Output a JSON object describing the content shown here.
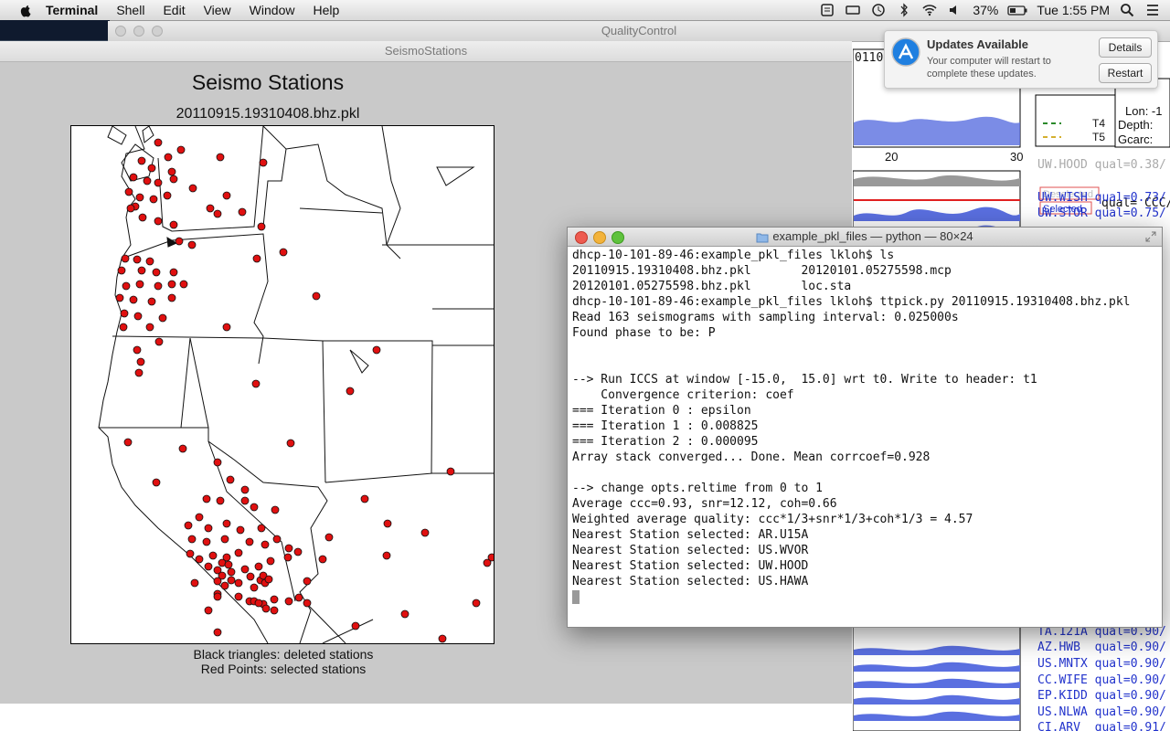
{
  "menubar": {
    "app": "Terminal",
    "items": [
      "Shell",
      "Edit",
      "View",
      "Window",
      "Help"
    ],
    "battery": "37%",
    "clock": "Tue 1:55 PM"
  },
  "qc_window": {
    "title": "QualityControl",
    "right_panel": {
      "legend": [
        "T4",
        "T5"
      ],
      "info": [
        "Lon: -1",
        "Depth:",
        "Gcarc:"
      ],
      "axis_ticks": [
        "20",
        "30"
      ],
      "event_tag": "0110",
      "deselected_label": "Deselected",
      "selected_label": "Selected",
      "qual_header": "qual= CCC/",
      "stations_top": [
        "UW.HOOD qual=0.38/",
        "UW.WISH qual=0.73/",
        "UW.STOR qual=0.75/"
      ],
      "stations_bottom": [
        "TA.121A qual=0.90/",
        "AZ.HWB  qual=0.90/",
        "US.MNTX qual=0.90/",
        "CC.WIFE qual=0.90/",
        "EP.KIDD qual=0.90/",
        "US.NLWA qual=0.90/",
        "CI.ARV  qual=0.91/"
      ]
    }
  },
  "seismo_window": {
    "title": "SeismoStations",
    "figure_title": "Seismo Stations",
    "figure_subtitle": "20110915.19310408.bhz.pkl",
    "caption_1": "Black triangles: deleted stations",
    "caption_2": "Red Points: selected stations"
  },
  "notification": {
    "title": "Updates Available",
    "message": "Your computer will restart to complete these updates.",
    "details_button": "Details",
    "restart_button": "Restart"
  },
  "terminal": {
    "title": "example_pkl_files — python — 80×24",
    "lines": [
      "dhcp-10-101-89-46:example_pkl_files lkloh$ ls",
      "20110915.19310408.bhz.pkl       20120101.05275598.mcp",
      "20120101.05275598.bhz.pkl       loc.sta",
      "dhcp-10-101-89-46:example_pkl_files lkloh$ ttpick.py 20110915.19310408.bhz.pkl",
      "Read 163 seismograms with sampling interval: 0.025000s",
      "Found phase to be: P",
      "",
      "",
      "--> Run ICCS at window [-15.0,  15.0] wrt t0. Write to header: t1",
      "    Convergence criterion: coef",
      "=== Iteration 0 : epsilon",
      "=== Iteration 1 : 0.008825",
      "=== Iteration 2 : 0.000095",
      "Array stack converged... Done. Mean corrcoef=0.928",
      "",
      "--> change opts.reltime from 0 to 1",
      "Average ccc=0.93, snr=12.12, coh=0.66",
      "Weighted average quality: ccc*1/3+snr*1/3+coh*1/3 = 4.57",
      "Nearest Station selected: AR.U15A",
      "Nearest Station selected: US.WVOR",
      "Nearest Station selected: UW.HOOD",
      "Nearest Station selected: US.HAWA"
    ]
  }
}
